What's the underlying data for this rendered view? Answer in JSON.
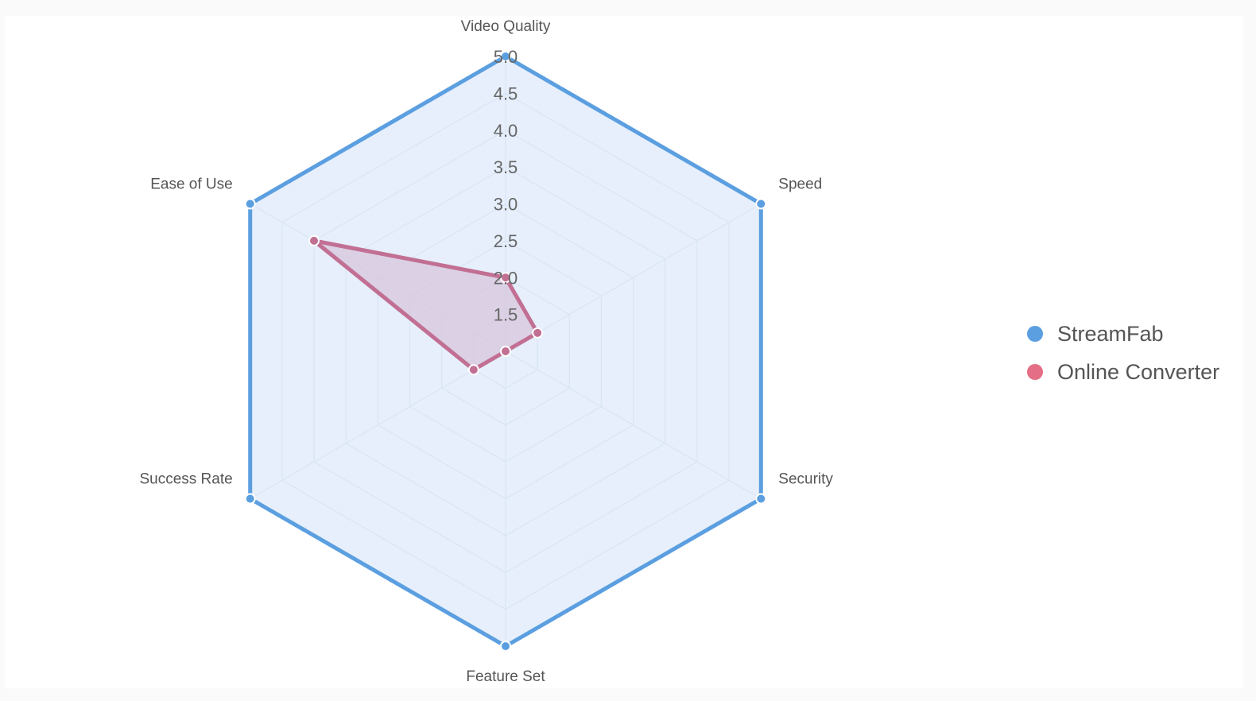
{
  "chart_data": {
    "type": "radar",
    "axes": [
      "Video Quality",
      "Speed",
      "Security",
      "Feature Set",
      "Success Rate",
      "Ease of Use"
    ],
    "rmin": 1,
    "rmax": 5,
    "ticks": [
      "1.5",
      "2.0",
      "2.5",
      "3.0",
      "3.5",
      "4.0",
      "4.5",
      "5.0"
    ],
    "grid": true,
    "legend_position": "right",
    "series": [
      {
        "name": "StreamFab",
        "values": [
          5,
          5,
          5,
          5,
          5,
          5
        ],
        "color": "#5b9fe0",
        "fill": "#ddeaf9"
      },
      {
        "name": "Online Converter",
        "values": [
          2,
          1.5,
          1,
          1,
          1.5,
          4
        ],
        "color": "#c26f94",
        "fill": "#d7c6dc"
      }
    ]
  },
  "colors": {
    "grid": "#cfd6e3",
    "legend_streamfab": "#5b9fe0",
    "legend_online_converter": "#e46e85"
  }
}
